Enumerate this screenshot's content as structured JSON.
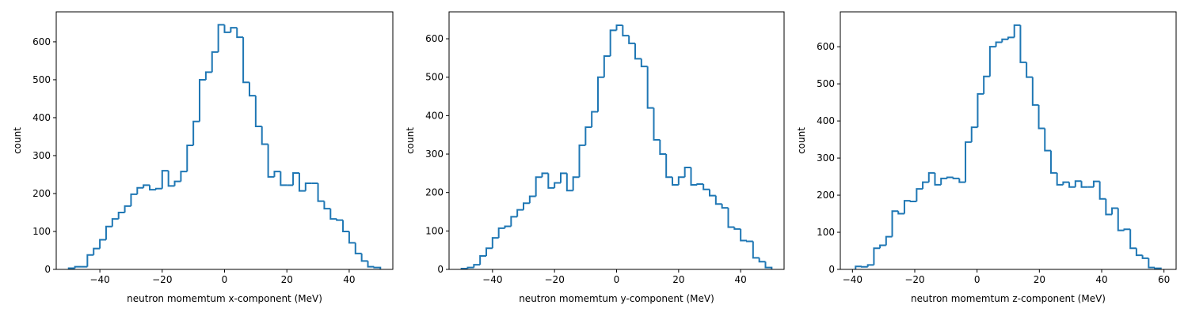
{
  "chart_data": [
    {
      "type": "histogram",
      "xlabel": "neutron momemtum x-component (MeV)",
      "ylabel": "count",
      "color": "#1f77b4",
      "bins": [
        -50,
        -48,
        -46,
        -44,
        -42,
        -40,
        -38,
        -36,
        -34,
        -32,
        -30,
        -28,
        -26,
        -24,
        -22,
        -20,
        -18,
        -16,
        -14,
        -12,
        -10,
        -8,
        -6,
        -4,
        -2,
        0,
        2,
        4,
        6,
        8,
        10,
        12,
        14,
        16,
        18,
        20,
        22,
        24,
        26,
        28,
        30,
        32,
        34,
        36,
        38,
        40,
        42,
        44,
        46,
        48,
        50
      ],
      "values": [
        3,
        7,
        7,
        38,
        55,
        78,
        113,
        133,
        150,
        167,
        198,
        215,
        222,
        210,
        213,
        260,
        220,
        232,
        258,
        327,
        390,
        500,
        520,
        573,
        645,
        625,
        637,
        612,
        493,
        458,
        377,
        330,
        244,
        258,
        222,
        222,
        254,
        207,
        227,
        227,
        180,
        160,
        133,
        130,
        100,
        70,
        42,
        22,
        7,
        5
      ],
      "xlim": [
        -54,
        54
      ],
      "ylim": [
        0,
        679
      ],
      "xticks": [
        {
          "value": -40,
          "label": "−40"
        },
        {
          "value": -20,
          "label": "−20"
        },
        0,
        20,
        40
      ],
      "yticks": [
        0,
        100,
        200,
        300,
        400,
        500,
        600
      ]
    },
    {
      "type": "histogram",
      "xlabel": "neutron momemtum y-component (MeV)",
      "ylabel": "count",
      "color": "#1f77b4",
      "bins": [
        -50,
        -48,
        -46,
        -44,
        -42,
        -40,
        -38,
        -36,
        -34,
        -32,
        -30,
        -28,
        -26,
        -24,
        -22,
        -20,
        -18,
        -16,
        -14,
        -12,
        -10,
        -8,
        -6,
        -4,
        -2,
        0,
        2,
        4,
        6,
        8,
        10,
        12,
        14,
        16,
        18,
        20,
        22,
        24,
        26,
        28,
        30,
        32,
        34,
        36,
        38,
        40,
        42,
        44,
        46,
        48,
        50
      ],
      "values": [
        2,
        5,
        12,
        35,
        55,
        82,
        107,
        112,
        137,
        155,
        172,
        190,
        240,
        250,
        212,
        225,
        250,
        205,
        240,
        323,
        370,
        410,
        500,
        555,
        622,
        635,
        608,
        588,
        548,
        528,
        420,
        337,
        300,
        240,
        220,
        240,
        265,
        220,
        222,
        208,
        192,
        170,
        160,
        110,
        105,
        75,
        73,
        30,
        20,
        5
      ],
      "xlim": [
        -54,
        54
      ],
      "ylim": [
        0,
        670
      ],
      "xticks": [
        {
          "value": -40,
          "label": "−40"
        },
        {
          "value": -20,
          "label": "−20"
        },
        0,
        20,
        40
      ],
      "yticks": [
        0,
        100,
        200,
        300,
        400,
        500,
        600
      ]
    },
    {
      "type": "histogram",
      "xlabel": "neutron momemtum z-component (MeV)",
      "ylabel": "count",
      "color": "#1f77b4",
      "bins": [
        -39,
        -37.04,
        -35.08,
        -33.12,
        -31.16,
        -29.2,
        -27.24,
        -25.28,
        -23.32,
        -21.36,
        -19.4,
        -17.44,
        -15.48,
        -13.52,
        -11.56,
        -9.6,
        -7.64,
        -5.68,
        -3.72,
        -1.76,
        0.2,
        2.16,
        4.12,
        6.08,
        8.04,
        10,
        11.96,
        13.92,
        15.88,
        17.84,
        19.8,
        21.76,
        23.72,
        25.68,
        27.64,
        29.6,
        31.56,
        33.52,
        35.48,
        37.44,
        39.4,
        41.36,
        43.32,
        45.28,
        47.24,
        49.2,
        51.16,
        53.12,
        55.08,
        57.04,
        59
      ],
      "values": [
        8,
        7,
        12,
        57,
        65,
        88,
        157,
        150,
        185,
        183,
        217,
        235,
        260,
        228,
        245,
        248,
        245,
        235,
        343,
        383,
        473,
        520,
        600,
        612,
        620,
        625,
        658,
        558,
        518,
        443,
        380,
        320,
        260,
        228,
        235,
        222,
        238,
        222,
        222,
        237,
        190,
        148,
        165,
        105,
        108,
        57,
        38,
        30,
        5,
        3
      ],
      "xlim": [
        -43.9,
        63.9
      ],
      "ylim": [
        0,
        694
      ],
      "xticks": [
        {
          "value": -40,
          "label": "−40"
        },
        {
          "value": -20,
          "label": "−20"
        },
        0,
        20,
        40,
        60
      ],
      "yticks": [
        0,
        100,
        200,
        300,
        400,
        500,
        600
      ]
    }
  ]
}
